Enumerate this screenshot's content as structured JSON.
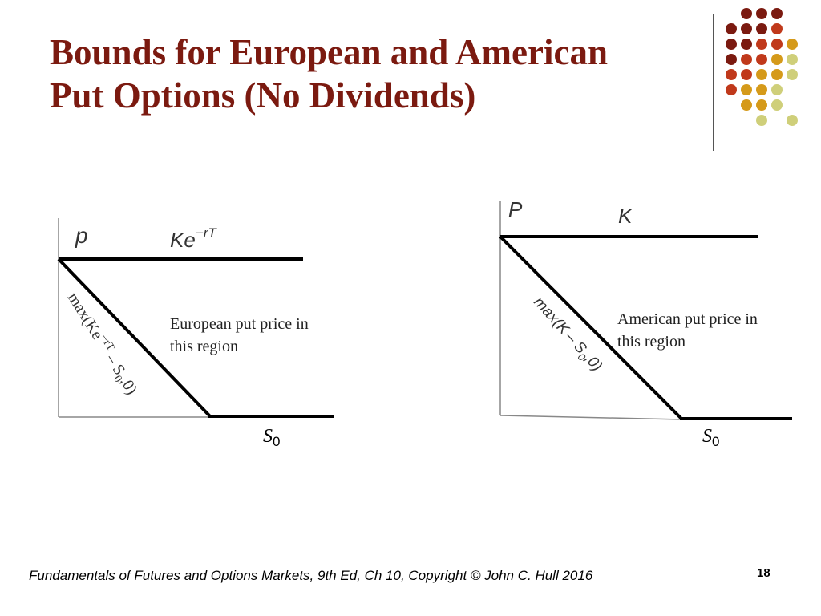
{
  "slide": {
    "title_line1": "Bounds for European and American",
    "title_line2": "Put Options (No Dividends)",
    "footer": "Fundamentals of Futures and Options Markets, 9th Ed, Ch 10, Copyright © John  C. Hull 2016",
    "page_number": "18"
  },
  "colors": {
    "title": "#7b1a10",
    "dot_palette": [
      "#7b1a10",
      "#c0391b",
      "#d59a1a",
      "#cfcf7a"
    ]
  },
  "diagrams": {
    "european": {
      "y_axis_label": "p",
      "upper_bound_label": "Ke",
      "upper_bound_exponent": "−rT",
      "lower_bound_label_pre": "max(Ke",
      "lower_bound_label_exp": "−rT",
      "lower_bound_label_mid": " – S",
      "lower_bound_label_sub": "0",
      "lower_bound_label_post": ",0)",
      "region_line1": "European put price in",
      "region_line2": "this region",
      "x_axis_label": "S",
      "x_axis_sub": "0"
    },
    "american": {
      "y_axis_label": "P",
      "upper_bound_label": "K",
      "lower_bound_label_pre": "max(K",
      "lower_bound_label_mid": "– S",
      "lower_bound_label_sub": "0",
      "lower_bound_label_post": ",0)",
      "region_line1": "American put price in",
      "region_line2": "this region",
      "x_axis_label": "S",
      "x_axis_sub": "0"
    }
  }
}
